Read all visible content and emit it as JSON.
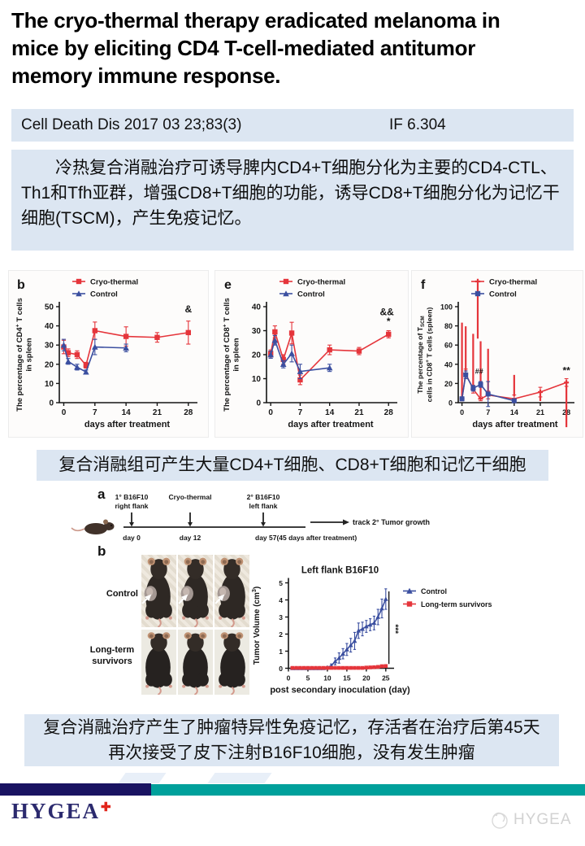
{
  "title_lines": [
    "The cryo-thermal therapy eradicated melanoma in",
    "mice by eliciting CD4 T-cell-mediated antitumor",
    "memory immune response."
  ],
  "citation": {
    "source": "Cell Death Dis 2017 03 23;83(3)",
    "impact_factor": "IF 6.304"
  },
  "abstract_cn": "冷热复合消融治疗可诱导脾内CD4+T细胞分化为主要的CD4-CTL、Th1和Tfh亚群，增强CD8+T细胞的功能，诱导CD8+T细胞分化为记忆干细胞(TSCM)，产生免疫记忆。",
  "caption1": "复合消融组可产生大量CD4+T细胞、CD8+T细胞和记忆干细胞",
  "caption2_lines": [
    "复合消融治疗产生了肿瘤特异性免疫记忆，存活者在治疗后第45天",
    "再次接受了皮下注射B16F10细胞，没有发生肿瘤"
  ],
  "figure": {
    "panel_a_label": "a",
    "panel_b_label": "b",
    "timeline": {
      "events": [
        {
          "lines": [
            "1° B16F10",
            "right flank"
          ],
          "day": "day 0"
        },
        {
          "lines": [
            "Cryo-thermal"
          ],
          "day": "day 12"
        },
        {
          "lines": [
            "2° B16F10",
            "left flank"
          ],
          "day": "day 57(45 days after treatment)"
        }
      ],
      "track_label": "track 2° Tumor growth"
    },
    "photo_rows": [
      {
        "label": "Control",
        "tumor": true
      },
      {
        "label": "Long-term survivors",
        "tumor": false
      }
    ]
  },
  "chart_data": [
    {
      "id": "cd4_spleen",
      "type": "line",
      "panel_label": "b",
      "ylabel_lines": [
        "The percentage of CD4^{+} T cells",
        "in spleen"
      ],
      "xlabel": "days after treatment",
      "xlim": [
        -1,
        29.5
      ],
      "ylim": [
        0,
        50
      ],
      "xticks": [
        0,
        7,
        14,
        21,
        28
      ],
      "yticks": [
        0,
        10,
        20,
        30,
        40,
        50
      ],
      "grid": false,
      "legend_position": "top-inside",
      "series": [
        {
          "name": "Cryo-thermal",
          "color": "#e5353b",
          "marker": "square",
          "x": [
            0,
            1,
            3,
            5,
            7,
            14,
            21,
            28
          ],
          "y": [
            29,
            26,
            25,
            19.5,
            37.5,
            34.5,
            34,
            36.5
          ],
          "err": [
            3.5,
            2,
            2,
            1.5,
            4.5,
            5,
            2.5,
            6
          ]
        },
        {
          "name": "Control",
          "color": "#3b4fa0",
          "marker": "triangle",
          "x": [
            0,
            1,
            3,
            5,
            7,
            14
          ],
          "y": [
            30,
            21.5,
            18.5,
            16,
            29,
            28.5
          ],
          "err": [
            3,
            1.5,
            1.5,
            1,
            4,
            2
          ]
        }
      ],
      "annotations": [
        {
          "type": "text",
          "text": "&",
          "x": 28,
          "y": 47
        }
      ]
    },
    {
      "id": "cd8_spleen",
      "type": "line",
      "panel_label": "e",
      "ylabel_lines": [
        "The percentage of CD8^{+} T cells",
        "in spleen"
      ],
      "xlabel": "days after treatment",
      "xlim": [
        -1,
        29.5
      ],
      "ylim": [
        0,
        40
      ],
      "xticks": [
        0,
        7,
        14,
        21,
        28
      ],
      "yticks": [
        0,
        10,
        20,
        30,
        40
      ],
      "grid": false,
      "legend_position": "top-inside",
      "series": [
        {
          "name": "Cryo-thermal",
          "color": "#e5353b",
          "marker": "square",
          "x": [
            0,
            1,
            3,
            5,
            7,
            14,
            21,
            28
          ],
          "y": [
            20.5,
            29.5,
            18,
            29,
            9.5,
            22,
            21.5,
            28.5
          ],
          "err": [
            1.5,
            2.5,
            2,
            4.5,
            2,
            2,
            1.5,
            1.5
          ]
        },
        {
          "name": "Control",
          "color": "#3b4fa0",
          "marker": "triangle",
          "x": [
            0,
            1,
            3,
            5,
            7,
            14
          ],
          "y": [
            20,
            26,
            16,
            20.5,
            13,
            14.5
          ],
          "err": [
            1.5,
            2,
            1.5,
            3.5,
            3,
            1.5
          ]
        }
      ],
      "annotations": [
        {
          "type": "text",
          "text": "&&",
          "x": 27.6,
          "y": 36.5
        },
        {
          "type": "text",
          "text": "*",
          "x": 28,
          "y": 32.5
        }
      ]
    },
    {
      "id": "tscm_spleen",
      "type": "line",
      "panel_label": "f",
      "ylabel_lines": [
        "The percentage of T~{SCM}",
        "cells in CD8^{+} T cells (spleen)"
      ],
      "xlabel": "days after treatment",
      "xlim": [
        -1,
        29.5
      ],
      "ylim": [
        0,
        100
      ],
      "xticks": [
        0,
        7,
        14,
        21,
        28
      ],
      "yticks": [
        0,
        20,
        40,
        60,
        80,
        100
      ],
      "grid": false,
      "legend_position": "top-inside",
      "series": [
        {
          "name": "Cryo-thermal",
          "color": "#e5353b",
          "marker": "plus",
          "x": [
            0,
            1,
            3,
            5,
            7,
            14,
            21,
            28
          ],
          "y": [
            4,
            30,
            14,
            4,
            8,
            4,
            11,
            21
          ],
          "err": [
            2,
            5,
            4,
            2,
            4,
            4,
            5,
            4
          ]
        },
        {
          "name": "Control",
          "color": "#3b4fa0",
          "marker": "square",
          "x": [
            0,
            1,
            3,
            5,
            7,
            14
          ],
          "y": [
            4,
            29,
            15,
            19,
            9,
            2
          ],
          "err": [
            2,
            4,
            3,
            3,
            13,
            2
          ]
        }
      ],
      "annotations": [
        {
          "type": "text",
          "text": "##",
          "x": 4.6,
          "y": 30,
          "size": 9
        },
        {
          "type": "text",
          "text": "**",
          "x": 28,
          "y": 30
        }
      ]
    },
    {
      "id": "tumor_growth",
      "type": "line",
      "title": "Left flank B16F10",
      "ylabel_lines": [
        "Tumor Volume (cm^{3})"
      ],
      "xlabel": "post secondary inoculation (day)",
      "xlim": [
        0,
        26.5
      ],
      "ylim": [
        0,
        5
      ],
      "xticks": [
        0,
        5,
        10,
        15,
        20,
        25
      ],
      "yticks": [
        0,
        1,
        2,
        3,
        4,
        5
      ],
      "grid": false,
      "legend_position": "right-outside",
      "series": [
        {
          "name": "Control",
          "color": "#3b4fa0",
          "marker": "triangle",
          "x": [
            1,
            2,
            3,
            4,
            5,
            6,
            7,
            8,
            9,
            10,
            11,
            12,
            13,
            14,
            15,
            16,
            17,
            18,
            19,
            20,
            21,
            22,
            23,
            24,
            25
          ],
          "y": [
            0,
            0,
            0,
            0,
            0,
            0,
            0,
            0,
            0,
            0.05,
            0.15,
            0.4,
            0.6,
            0.85,
            1.1,
            1.35,
            1.6,
            2.2,
            2.3,
            2.45,
            2.55,
            2.65,
            3.0,
            3.5,
            4.05
          ],
          "err": [
            0,
            0,
            0,
            0,
            0,
            0,
            0,
            0,
            0,
            0,
            0.1,
            0.2,
            0.3,
            0.3,
            0.35,
            0.4,
            0.5,
            0.45,
            0.4,
            0.35,
            0.35,
            0.4,
            0.45,
            0.55,
            0.6
          ]
        },
        {
          "name": "Long-term survivors",
          "color": "#e5353b",
          "marker": "square",
          "x": [
            1,
            2,
            3,
            4,
            5,
            6,
            7,
            8,
            9,
            10,
            11,
            12,
            13,
            14,
            15,
            16,
            17,
            18,
            19,
            20,
            21,
            22,
            23,
            24,
            25
          ],
          "y": [
            0.02,
            0.02,
            0.02,
            0.02,
            0.02,
            0.02,
            0.02,
            0.02,
            0.02,
            0.02,
            0.02,
            0.02,
            0.02,
            0.02,
            0.02,
            0.02,
            0.02,
            0.02,
            0.02,
            0.04,
            0.05,
            0.06,
            0.08,
            0.12,
            0.13
          ],
          "err": [
            0,
            0,
            0,
            0,
            0,
            0,
            0,
            0,
            0,
            0,
            0,
            0,
            0,
            0,
            0,
            0,
            0,
            0,
            0,
            0,
            0,
            0,
            0,
            0,
            0
          ]
        }
      ],
      "annotations": [
        {
          "type": "vline",
          "x": 25.8,
          "y1": 0.25,
          "y2": 4.5
        },
        {
          "type": "vtext",
          "text": "***",
          "x": 26.8,
          "y": 2.3
        }
      ]
    }
  ],
  "footer": {
    "logo_text": "HYGEA",
    "watermark_text": "HYGEA"
  },
  "colors": {
    "accent_red": "#e5353b",
    "accent_blue": "#3b4fa0",
    "panel_bg": "#dce6f2",
    "footer_navy": "#191361",
    "footer_teal": "#00a09b",
    "logo_navy": "#2b2a6e",
    "logo_plus_red": "#e1251b"
  }
}
